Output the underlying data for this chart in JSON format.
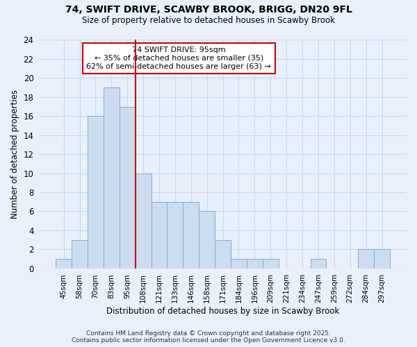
{
  "title1": "74, SWIFT DRIVE, SCAWBY BROOK, BRIGG, DN20 9FL",
  "title2": "Size of property relative to detached houses in Scawby Brook",
  "xlabel": "Distribution of detached houses by size in Scawby Brook",
  "ylabel": "Number of detached properties",
  "categories": [
    "45sqm",
    "58sqm",
    "70sqm",
    "83sqm",
    "95sqm",
    "108sqm",
    "121sqm",
    "133sqm",
    "146sqm",
    "158sqm",
    "171sqm",
    "184sqm",
    "196sqm",
    "209sqm",
    "221sqm",
    "234sqm",
    "247sqm",
    "259sqm",
    "272sqm",
    "284sqm",
    "297sqm"
  ],
  "values": [
    1,
    3,
    16,
    19,
    17,
    10,
    7,
    7,
    7,
    6,
    3,
    1,
    1,
    1,
    0,
    0,
    1,
    0,
    0,
    2,
    2
  ],
  "bar_color": "#cddcf0",
  "bar_edge_color": "#7bafd4",
  "subject_label": "74 SWIFT DRIVE: 95sqm",
  "annotation_line1": "← 35% of detached houses are smaller (35)",
  "annotation_line2": "62% of semi-detached houses are larger (63) →",
  "red_line_color": "#cc0000",
  "background_color": "#e8f0fb",
  "grid_color": "#c8d8ee",
  "ylim": [
    0,
    24
  ],
  "yticks": [
    0,
    2,
    4,
    6,
    8,
    10,
    12,
    14,
    16,
    18,
    20,
    22,
    24
  ],
  "footer_line1": "Contains HM Land Registry data © Crown copyright and database right 2025.",
  "footer_line2": "Contains public sector information licensed under the Open Government Licence v3.0.",
  "annotation_box_color": "#ffffff",
  "annotation_box_edge": "#cc0000"
}
